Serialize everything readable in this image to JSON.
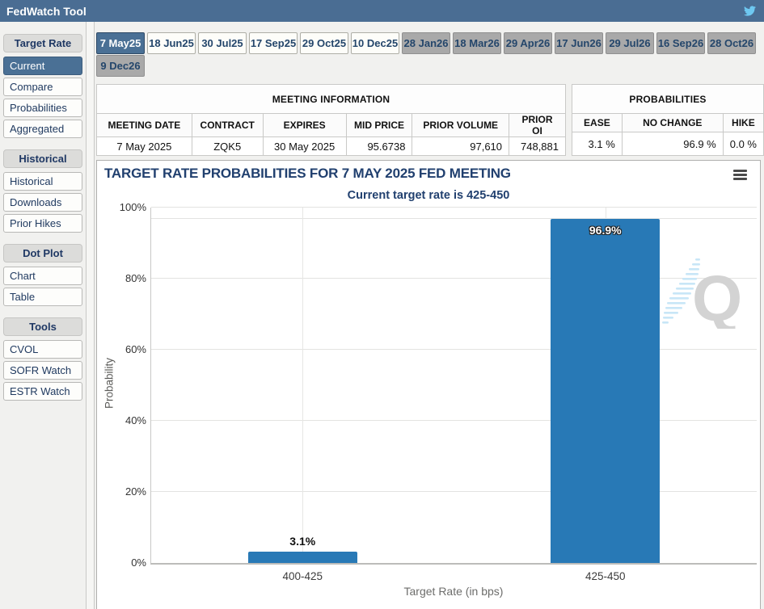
{
  "theme": {
    "accent_blue": "#4a6d93",
    "selected_blue": "#4a7095",
    "navy_text": "#1f3864",
    "bar_blue": "#2879b6",
    "far_tab_gray": "#a9a9a9",
    "twitter_blue": "#6ec8f1"
  },
  "header": {
    "title": "FedWatch Tool"
  },
  "sidebar": {
    "sections": [
      {
        "label": "Target Rate",
        "items": [
          "Current",
          "Compare",
          "Probabilities",
          "Aggregated"
        ],
        "selected": "Current"
      },
      {
        "label": "Historical",
        "items": [
          "Historical",
          "Downloads",
          "Prior Hikes"
        ]
      },
      {
        "label": "Dot Plot",
        "items": [
          "Chart",
          "Table"
        ]
      },
      {
        "label": "Tools",
        "items": [
          "CVOL",
          "SOFR Watch",
          "ESTR Watch"
        ]
      }
    ]
  },
  "tabs": {
    "selected": "7 May25",
    "row1": [
      "7 May25",
      "18 Jun25",
      "30 Jul25",
      "17 Sep25",
      "29 Oct25",
      "10 Dec25",
      "28 Jan26",
      "18 Mar26",
      "29 Apr26",
      "17 Jun26",
      "29 Jul26",
      "16 Sep26",
      "28 Oct26"
    ],
    "row2": [
      "9 Dec26"
    ]
  },
  "meeting_info": {
    "title": "MEETING INFORMATION",
    "columns": [
      "MEETING DATE",
      "CONTRACT",
      "EXPIRES",
      "MID PRICE",
      "PRIOR VOLUME",
      "PRIOR OI"
    ],
    "row": [
      "7 May 2025",
      "ZQK5",
      "30 May 2025",
      "95.6738",
      "97,610",
      "748,881"
    ]
  },
  "probabilities": {
    "title": "PROBABILITIES",
    "columns": [
      "EASE",
      "NO CHANGE",
      "HIKE"
    ],
    "row": [
      "3.1 %",
      "96.9 %",
      "0.0 %"
    ]
  },
  "chart_data": {
    "type": "bar",
    "title": "TARGET RATE PROBABILITIES FOR 7 MAY 2025 FED MEETING",
    "subtitle": "Current target rate is 425-450",
    "categories": [
      "400-425",
      "425-450"
    ],
    "values": [
      3.1,
      96.9
    ],
    "value_labels": [
      "3.1%",
      "96.9%"
    ],
    "xlabel": "Target Rate (in bps)",
    "ylabel": "Probability",
    "ylim": [
      0,
      100
    ],
    "yticks": [
      "0%",
      "20%",
      "40%",
      "60%",
      "80%",
      "100%"
    ],
    "grid": true,
    "legend": "none",
    "bar_color": "#2879b6",
    "watermark": "Q"
  }
}
